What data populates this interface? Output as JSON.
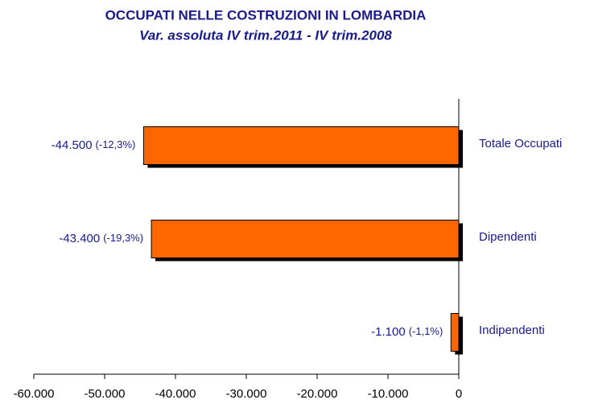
{
  "chart_data": {
    "type": "hbar",
    "title": "OCCUPATI NELLE COSTRUZIONI IN LOMBARDIA",
    "subtitle": "Var. assoluta IV trim.2011 - IV trim.2008",
    "categories": [
      "Totale Occupati",
      "Dipendenti",
      "Indipendenti"
    ],
    "values": [
      -44500,
      -43400,
      -1100
    ],
    "value_labels": [
      "-44.500",
      "-43.400",
      "-1.100"
    ],
    "share_labels": [
      "(-12,3%)",
      "(-19,3%)",
      "(-1,1%)"
    ],
    "color": "#ff6600",
    "xlim": [
      -60000,
      0
    ],
    "xticks": [
      {
        "value": -60000,
        "label": "-60.000"
      },
      {
        "value": -50000,
        "label": "-50.000"
      },
      {
        "value": -40000,
        "label": "-40.000"
      },
      {
        "value": -30000,
        "label": "-30.000"
      },
      {
        "value": -20000,
        "label": "-20.000"
      },
      {
        "value": -10000,
        "label": "-10.000"
      },
      0
    ]
  }
}
